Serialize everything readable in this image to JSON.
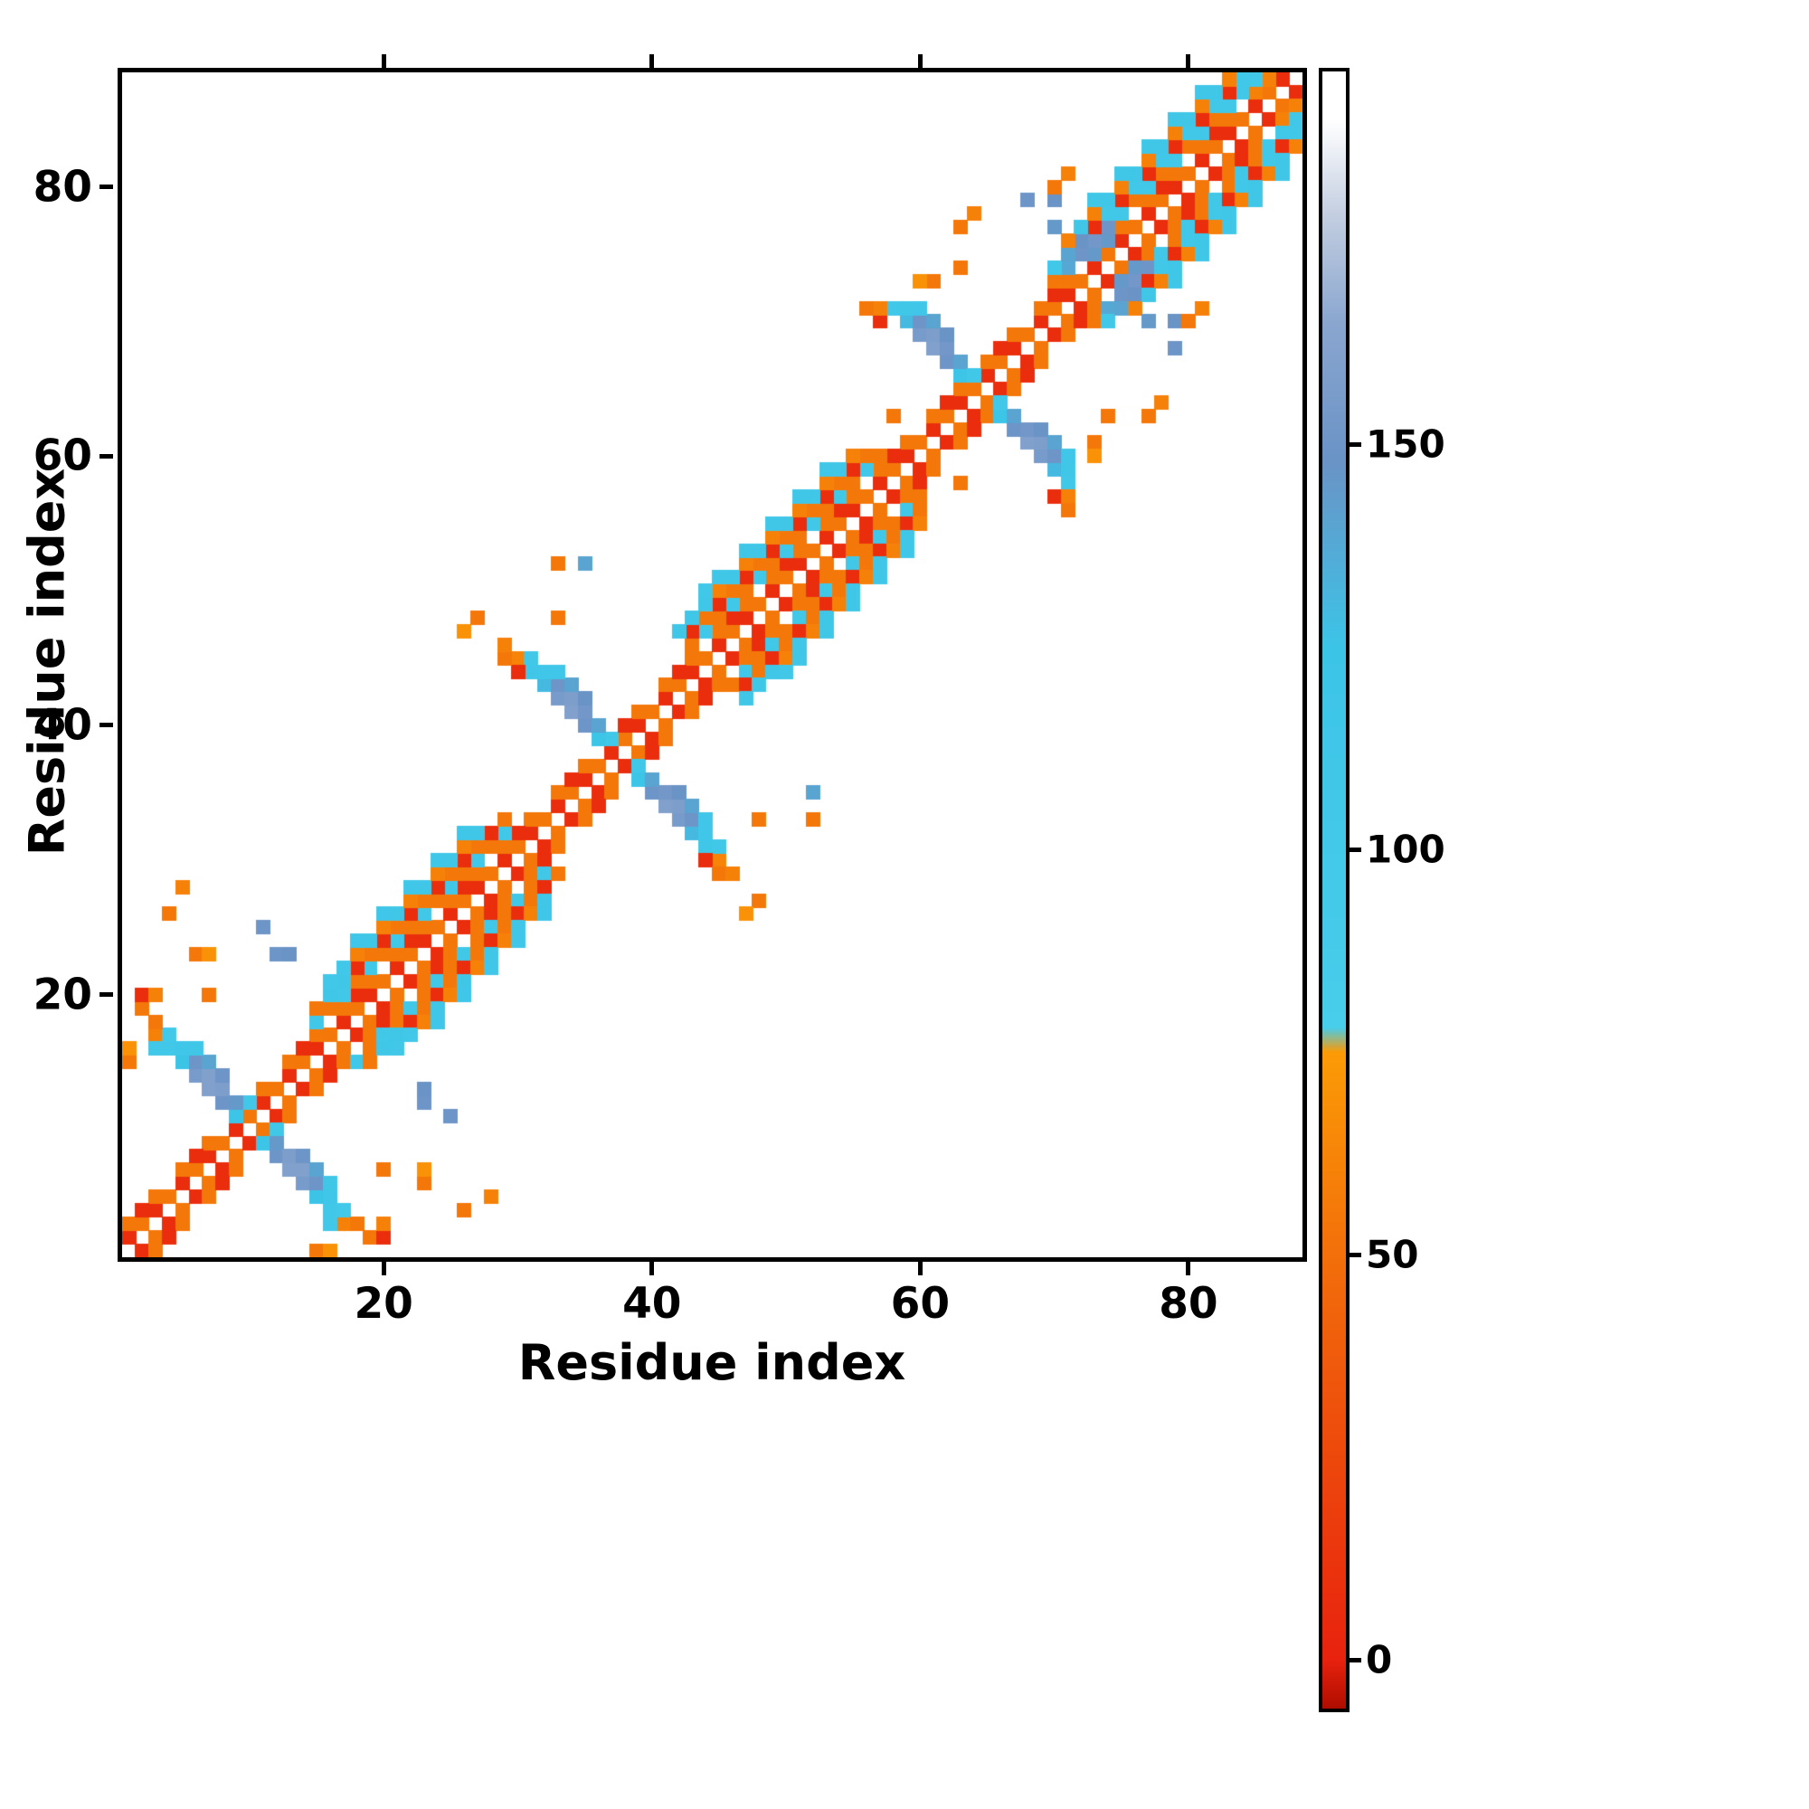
{
  "axes": {
    "xlabel": "Residue index",
    "ylabel": "Residue index",
    "x_ticks": [
      20,
      40,
      60,
      80
    ],
    "y_ticks": [
      20,
      40,
      60,
      80
    ],
    "x_range": [
      0.5,
      88.5
    ],
    "y_range": [
      0.5,
      88.5
    ]
  },
  "colorbar": {
    "ticks": [
      0,
      50,
      100,
      150
    ],
    "domain": [
      -6,
      196
    ],
    "stops": [
      [
        -6,
        "#b00d00"
      ],
      [
        0,
        "#e8220e"
      ],
      [
        45,
        "#f1670b"
      ],
      [
        75,
        "#fb9b06"
      ],
      [
        78,
        "#48cdea"
      ],
      [
        125,
        "#3cc4e7"
      ],
      [
        148,
        "#6a93c6"
      ],
      [
        165,
        "#8aa6cf"
      ],
      [
        178,
        "#c2cde0"
      ],
      [
        190,
        "#ffffff"
      ],
      [
        196,
        "#ffffff"
      ]
    ]
  },
  "chart_data": {
    "type": "heatmap",
    "n": 88,
    "symmetric": true,
    "background_value": null,
    "value_key": {
      "red": 8,
      "orange": 55,
      "light_orange": 70,
      "cyan": 105,
      "steel_blue": 150,
      "dark_steel": 160
    },
    "runs": [
      {
        "d": 1,
        "i0": 1,
        "i1": 87,
        "vs": [
          8,
          55
        ]
      },
      {
        "d": 2,
        "i0": 1,
        "i1": 85,
        "step": 2,
        "vs": [
          55
        ]
      },
      {
        "d": 2,
        "i0": 2,
        "i1": 86,
        "step": 4,
        "vs": [
          8
        ]
      },
      {
        "d": 3,
        "i0": 15,
        "i1": 29,
        "vs": [
          105,
          55
        ]
      },
      {
        "d": 4,
        "i0": 15,
        "i1": 29,
        "vs": [
          55,
          8
        ]
      },
      {
        "d": 5,
        "i0": 17,
        "i1": 27,
        "vs": [
          110,
          60
        ]
      },
      {
        "d": 6,
        "i0": 18,
        "i1": 26,
        "step": 2,
        "vs": [
          115
        ]
      },
      {
        "d": 3,
        "i0": 43,
        "i1": 57,
        "vs": [
          55,
          105
        ]
      },
      {
        "d": 4,
        "i0": 43,
        "i1": 56,
        "vs": [
          8,
          55
        ]
      },
      {
        "d": 5,
        "i0": 44,
        "i1": 55,
        "vs": [
          110,
          60
        ]
      },
      {
        "d": 6,
        "i0": 45,
        "i1": 54,
        "step": 2,
        "vs": [
          110
        ]
      },
      {
        "d": 3,
        "i0": 70,
        "i1": 85,
        "vs": [
          55,
          105
        ]
      },
      {
        "d": 4,
        "i0": 70,
        "i1": 84,
        "vs": [
          105,
          8
        ]
      },
      {
        "d": 5,
        "i0": 71,
        "i1": 83,
        "vs": [
          60,
          110
        ]
      },
      {
        "d": 6,
        "i0": 73,
        "i1": 81,
        "step": 2,
        "vs": [
          110
        ]
      }
    ],
    "cells": [
      [
        9,
        11,
        120
      ],
      [
        8,
        12,
        150
      ],
      [
        7,
        13,
        160
      ],
      [
        6,
        14,
        155
      ],
      [
        5,
        15,
        125
      ],
      [
        4,
        16,
        105
      ],
      [
        3,
        17,
        60
      ],
      [
        9,
        12,
        145
      ],
      [
        8,
        13,
        158
      ],
      [
        7,
        14,
        160
      ],
      [
        6,
        15,
        150
      ],
      [
        5,
        16,
        112
      ],
      [
        4,
        17,
        100
      ],
      [
        8,
        14,
        150
      ],
      [
        7,
        15,
        140
      ],
      [
        6,
        16,
        108
      ],
      [
        10,
        12,
        105
      ],
      [
        3,
        16,
        105
      ],
      [
        3,
        18,
        55
      ],
      [
        2,
        19,
        55
      ],
      [
        2,
        20,
        8
      ],
      [
        3,
        20,
        60
      ],
      [
        1,
        15,
        55
      ],
      [
        1,
        16,
        70
      ],
      [
        12,
        23,
        150
      ],
      [
        13,
        23,
        148
      ],
      [
        11,
        25,
        150
      ],
      [
        6,
        23,
        55
      ],
      [
        7,
        23,
        70
      ],
      [
        4,
        26,
        55
      ],
      [
        5,
        28,
        60
      ],
      [
        7,
        20,
        55
      ],
      [
        16,
        20,
        110
      ],
      [
        17,
        21,
        108
      ],
      [
        17,
        22,
        105
      ],
      [
        16,
        21,
        105
      ],
      [
        36,
        39,
        120
      ],
      [
        35,
        40,
        150
      ],
      [
        34,
        41,
        160
      ],
      [
        33,
        42,
        155
      ],
      [
        32,
        43,
        130
      ],
      [
        31,
        44,
        108
      ],
      [
        30,
        45,
        62
      ],
      [
        36,
        40,
        140
      ],
      [
        35,
        41,
        152
      ],
      [
        34,
        42,
        158
      ],
      [
        33,
        43,
        150
      ],
      [
        32,
        44,
        115
      ],
      [
        31,
        45,
        104
      ],
      [
        35,
        42,
        148
      ],
      [
        34,
        43,
        140
      ],
      [
        33,
        44,
        112
      ],
      [
        37,
        39,
        105
      ],
      [
        30,
        44,
        8
      ],
      [
        29,
        45,
        55
      ],
      [
        29,
        46,
        60
      ],
      [
        33,
        52,
        55
      ],
      [
        35,
        52,
        140
      ],
      [
        27,
        48,
        55
      ],
      [
        26,
        47,
        70
      ],
      [
        33,
        48,
        55
      ],
      [
        43,
        48,
        110
      ],
      [
        44,
        50,
        105
      ],
      [
        42,
        47,
        108
      ],
      [
        63,
        66,
        120
      ],
      [
        62,
        67,
        150
      ],
      [
        61,
        68,
        160
      ],
      [
        60,
        69,
        155
      ],
      [
        59,
        70,
        130
      ],
      [
        58,
        71,
        106
      ],
      [
        63,
        67,
        140
      ],
      [
        62,
        68,
        152
      ],
      [
        61,
        69,
        158
      ],
      [
        60,
        70,
        150
      ],
      [
        59,
        71,
        110
      ],
      [
        62,
        69,
        148
      ],
      [
        61,
        70,
        140
      ],
      [
        60,
        71,
        112
      ],
      [
        64,
        66,
        105
      ],
      [
        57,
        70,
        8
      ],
      [
        57,
        71,
        60
      ],
      [
        56,
        71,
        55
      ],
      [
        58,
        63,
        55
      ],
      [
        63,
        74,
        55
      ],
      [
        63,
        77,
        55
      ],
      [
        64,
        78,
        60
      ],
      [
        68,
        79,
        150
      ],
      [
        70,
        79,
        148
      ],
      [
        70,
        77,
        145
      ],
      [
        61,
        73,
        55
      ],
      [
        60,
        73,
        70
      ],
      [
        72,
        75,
        150
      ],
      [
        73,
        76,
        152
      ],
      [
        72,
        76,
        148
      ],
      [
        73,
        75,
        145
      ],
      [
        74,
        77,
        150
      ],
      [
        71,
        75,
        140
      ],
      [
        74,
        76,
        145
      ],
      [
        71,
        74,
        138
      ],
      [
        70,
        80,
        55
      ],
      [
        71,
        81,
        60
      ],
      [
        85,
        87,
        60
      ],
      [
        84,
        87,
        105
      ],
      [
        86,
        88,
        60
      ]
    ]
  }
}
